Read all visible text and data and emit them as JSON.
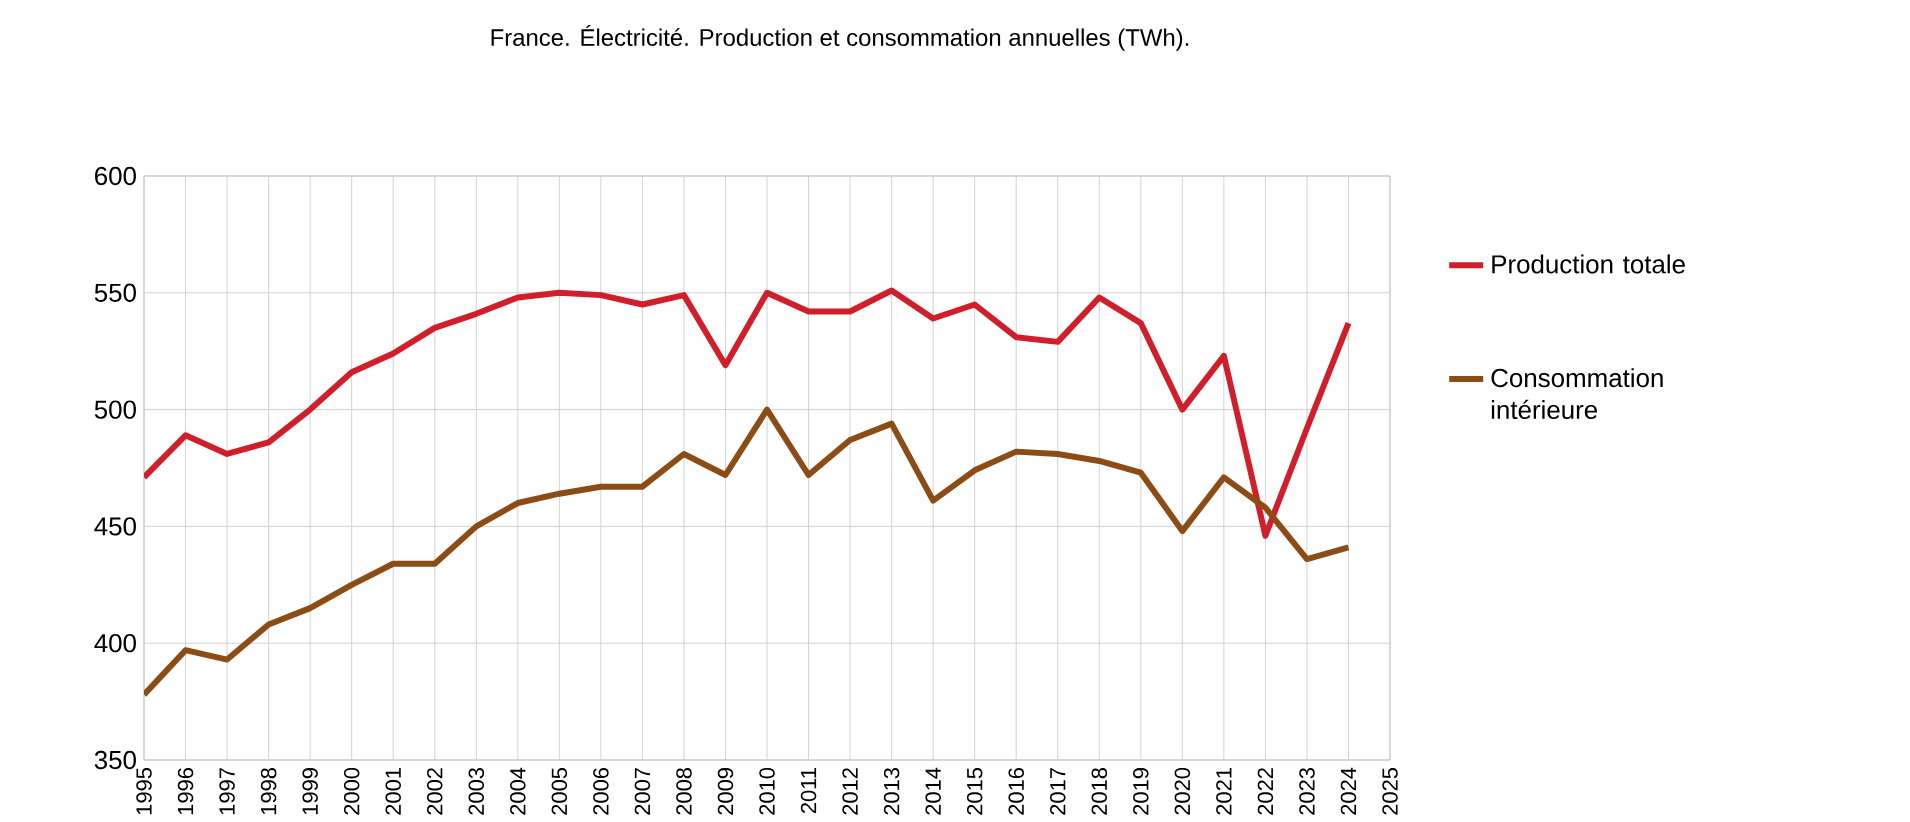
{
  "chart_data": {
    "type": "line",
    "title": "France. Électricité. Production et consommation annuelles (TWh).",
    "categories": [
      "1995",
      "1996",
      "1997",
      "1998",
      "1999",
      "2000",
      "2001",
      "2002",
      "2003",
      "2004",
      "2005",
      "2006",
      "2007",
      "2008",
      "2009",
      "2010",
      "2011",
      "2012",
      "2013",
      "2014",
      "2015",
      "2016",
      "2017",
      "2018",
      "2019",
      "2020",
      "2021",
      "2022",
      "2023",
      "2024",
      "2025"
    ],
    "series": [
      {
        "name": "Production totale",
        "color": "#d01f2b",
        "values": [
          471,
          489,
          481,
          486,
          500,
          516,
          524,
          535,
          541,
          548,
          550,
          549,
          545,
          549,
          519,
          550,
          542,
          542,
          551,
          539,
          545,
          531,
          529,
          548,
          537,
          500,
          523,
          446,
          492,
          537,
          null
        ]
      },
      {
        "name": "Consommation intérieure",
        "color": "#8b4c16",
        "values": [
          378,
          397,
          393,
          408,
          415,
          425,
          434,
          434,
          450,
          460,
          464,
          467,
          467,
          481,
          472,
          500,
          472,
          487,
          494,
          461,
          474,
          482,
          481,
          478,
          473,
          448,
          471,
          458,
          436,
          441,
          null
        ]
      }
    ],
    "ylim": [
      350,
      600
    ],
    "yticks": [
      350,
      400,
      450,
      500,
      550,
      600
    ],
    "grid": true,
    "legend": "right",
    "marker": "none",
    "line_style": "solid"
  }
}
